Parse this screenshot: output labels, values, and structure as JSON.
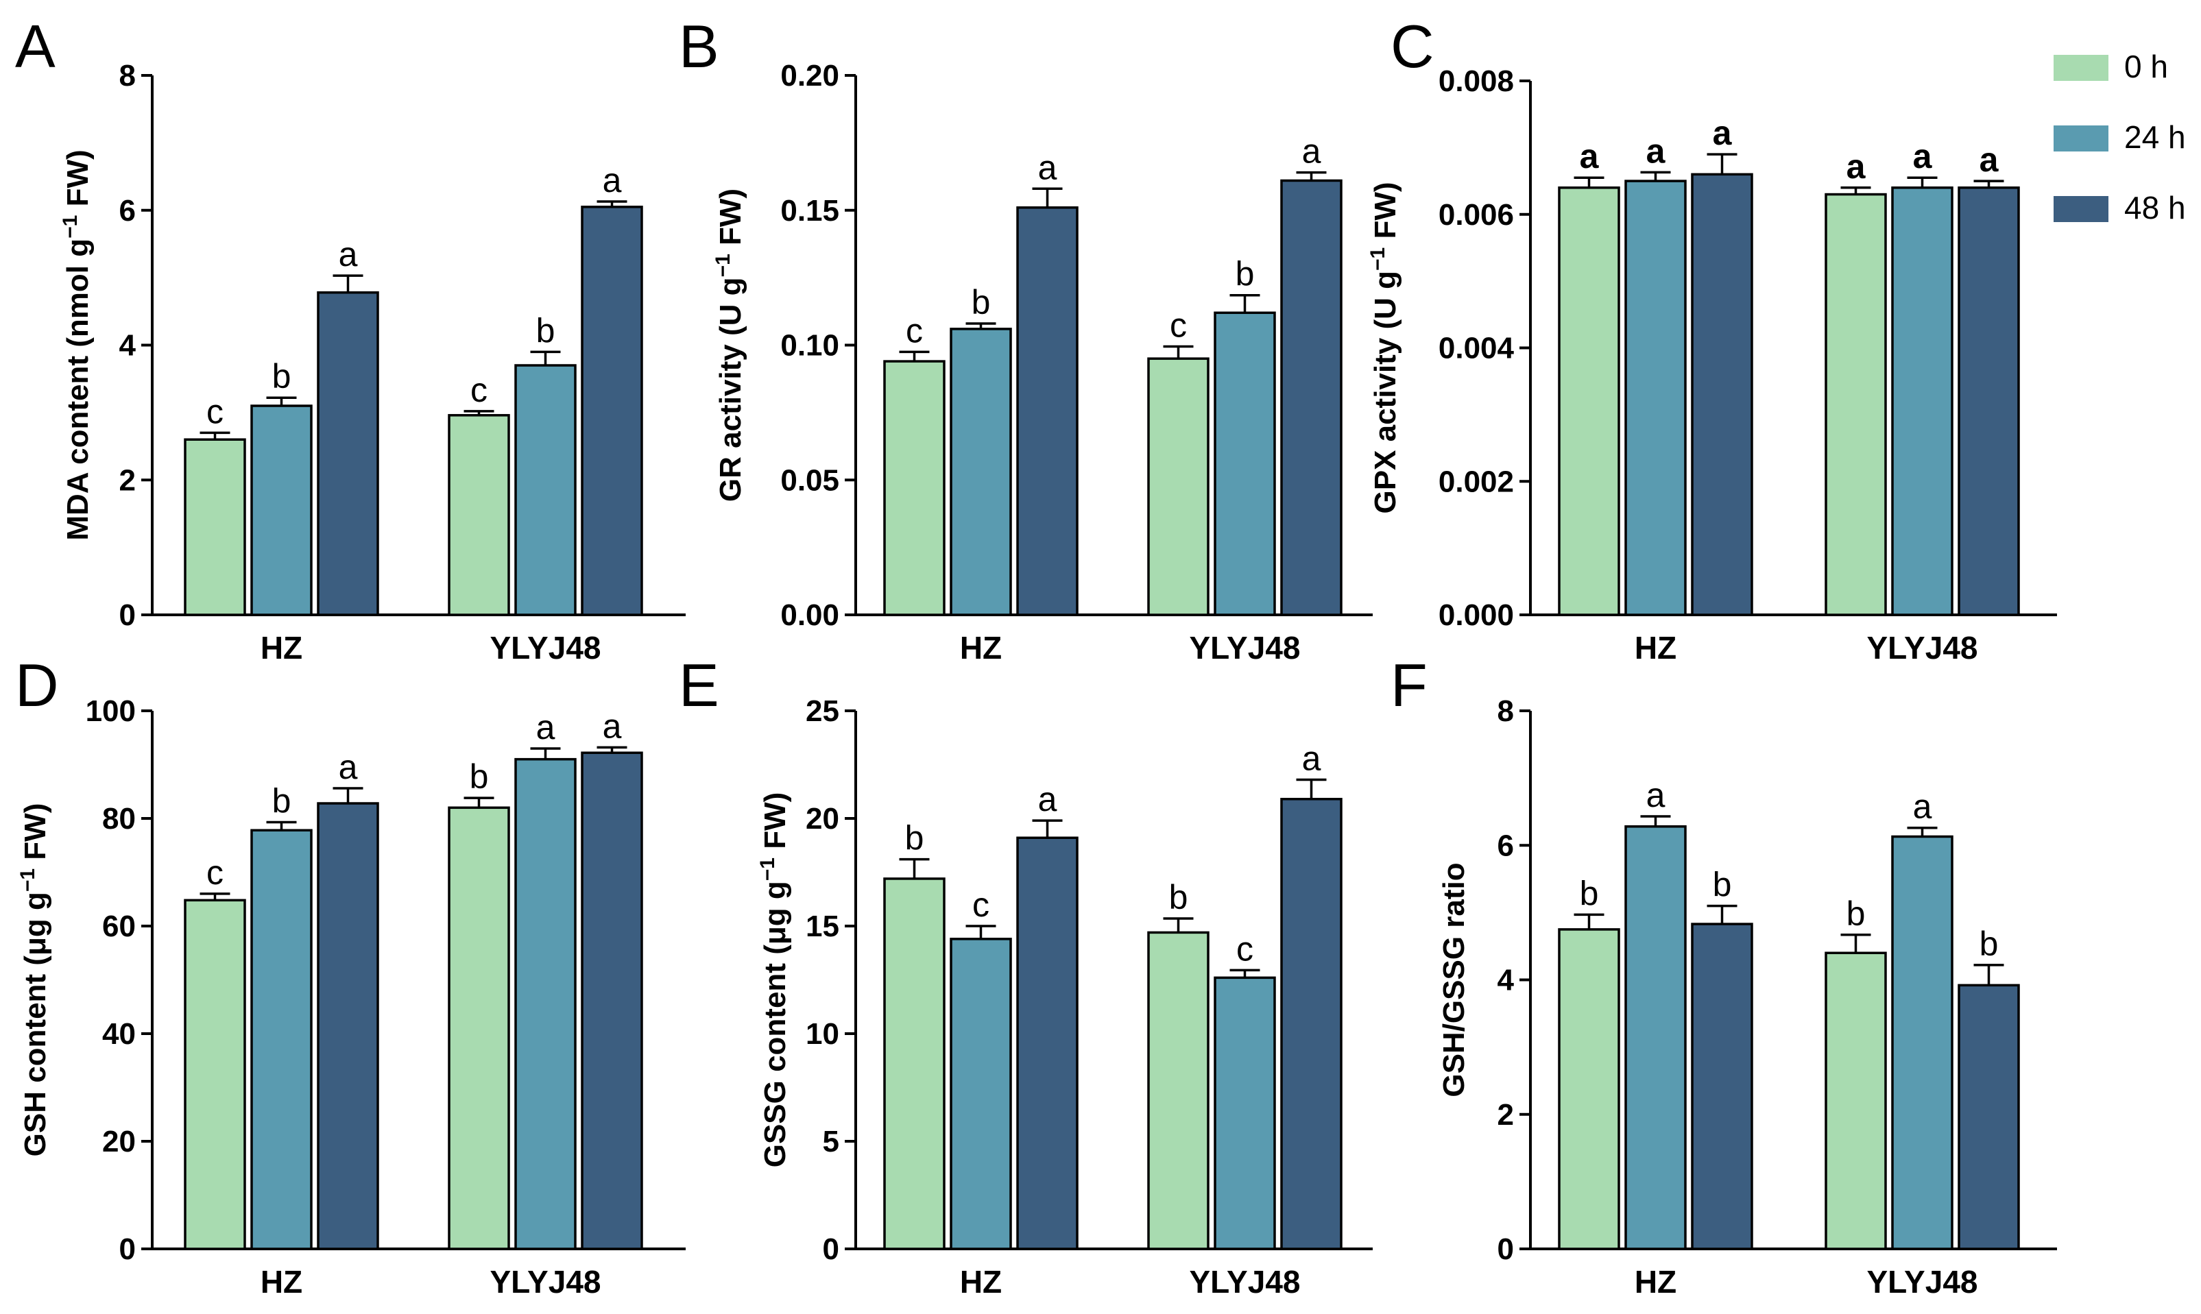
{
  "colors": {
    "0h": "#a8dbb0",
    "24h": "#5a9bb0",
    "48h": "#3c5e80",
    "stroke": "#000000"
  },
  "legend": [
    {
      "label": "0 h",
      "color_key": "0h"
    },
    {
      "label": "24 h",
      "color_key": "24h"
    },
    {
      "label": "48 h",
      "color_key": "48h"
    }
  ],
  "chart_data": [
    {
      "type": "bar",
      "panel": "A",
      "ylabel": "MDA content (nmol g<sup>−1</sup> FW)",
      "ylim": [
        0,
        8
      ],
      "yticks": [
        "0",
        "2",
        "4",
        "6",
        "8"
      ],
      "categories": [
        "HZ",
        "YLYJ48"
      ],
      "series": [
        {
          "name": "0 h",
          "values": [
            2.6,
            2.96
          ],
          "errors": [
            0.1,
            0.06
          ],
          "letters": [
            "c",
            "c"
          ]
        },
        {
          "name": "24 h",
          "values": [
            3.1,
            3.7
          ],
          "errors": [
            0.12,
            0.2
          ],
          "letters": [
            "b",
            "b"
          ]
        },
        {
          "name": "48 h",
          "values": [
            4.78,
            6.05
          ],
          "errors": [
            0.25,
            0.08
          ],
          "letters": [
            "a",
            "a"
          ]
        }
      ],
      "letters_bold": false
    },
    {
      "type": "bar",
      "panel": "B",
      "ylabel": "GR activity (U g<sup>−1</sup> FW)",
      "ylim": [
        0,
        0.2
      ],
      "yticks": [
        "0.00",
        "0.05",
        "0.10",
        "0.15",
        "0.20"
      ],
      "categories": [
        "HZ",
        "YLYJ48"
      ],
      "series": [
        {
          "name": "0 h",
          "values": [
            0.094,
            0.095
          ],
          "errors": [
            0.0035,
            0.0045
          ],
          "letters": [
            "c",
            "c"
          ]
        },
        {
          "name": "24 h",
          "values": [
            0.106,
            0.112
          ],
          "errors": [
            0.002,
            0.0065
          ],
          "letters": [
            "b",
            "b"
          ]
        },
        {
          "name": "48 h",
          "values": [
            0.151,
            0.161
          ],
          "errors": [
            0.007,
            0.003
          ],
          "letters": [
            "a",
            "a"
          ]
        }
      ],
      "letters_bold": false
    },
    {
      "type": "bar",
      "panel": "C",
      "ylabel": "GPX activity (U g<sup>−1</sup> FW)",
      "ylim": [
        0,
        0.008
      ],
      "yticks": [
        "0.000",
        "0.002",
        "0.004",
        "0.006",
        "0.008"
      ],
      "categories": [
        "HZ",
        "YLYJ48"
      ],
      "series": [
        {
          "name": "0 h",
          "values": [
            0.0064,
            0.0063
          ],
          "errors": [
            0.00015,
            0.0001
          ],
          "letters": [
            "a",
            "a"
          ]
        },
        {
          "name": "24 h",
          "values": [
            0.0065,
            0.0064
          ],
          "errors": [
            0.00013,
            0.00015
          ],
          "letters": [
            "a",
            "a"
          ]
        },
        {
          "name": "48 h",
          "values": [
            0.0066,
            0.0064
          ],
          "errors": [
            0.0003,
            0.0001
          ],
          "letters": [
            "a",
            "a"
          ]
        }
      ],
      "letters_bold": true
    },
    {
      "type": "bar",
      "panel": "D",
      "ylabel": "GSH content (μg g<sup>−1</sup> FW)",
      "ylim": [
        0,
        100
      ],
      "yticks": [
        "0",
        "20",
        "40",
        "60",
        "80",
        "100"
      ],
      "categories": [
        "HZ",
        "YLYJ48"
      ],
      "series": [
        {
          "name": "0 h",
          "values": [
            64.8,
            82
          ],
          "errors": [
            1.2,
            1.8
          ],
          "letters": [
            "c",
            "b"
          ]
        },
        {
          "name": "24 h",
          "values": [
            77.8,
            91
          ],
          "errors": [
            1.5,
            2.0
          ],
          "letters": [
            "b",
            "a"
          ]
        },
        {
          "name": "48 h",
          "values": [
            82.8,
            92.2
          ],
          "errors": [
            2.8,
            1.0
          ],
          "letters": [
            "a",
            "a"
          ]
        }
      ],
      "letters_bold": false
    },
    {
      "type": "bar",
      "panel": "E",
      "ylabel": "GSSG content (μg g<sup>−1</sup> FW)",
      "ylim": [
        0,
        25
      ],
      "yticks": [
        "0",
        "5",
        "10",
        "15",
        "20",
        "25"
      ],
      "categories": [
        "HZ",
        "YLYJ48"
      ],
      "series": [
        {
          "name": "0 h",
          "values": [
            17.2,
            14.7
          ],
          "errors": [
            0.9,
            0.65
          ],
          "letters": [
            "b",
            "b"
          ]
        },
        {
          "name": "24 h",
          "values": [
            14.4,
            12.6
          ],
          "errors": [
            0.6,
            0.35
          ],
          "letters": [
            "c",
            "c"
          ]
        },
        {
          "name": "48 h",
          "values": [
            19.1,
            20.9
          ],
          "errors": [
            0.8,
            0.9
          ],
          "letters": [
            "a",
            "a"
          ]
        }
      ],
      "letters_bold": false
    },
    {
      "type": "bar",
      "panel": "F",
      "ylabel": "GSH/GSSG ratio",
      "ylim": [
        0,
        8
      ],
      "yticks": [
        "0",
        "2",
        "4",
        "6",
        "8"
      ],
      "categories": [
        "HZ",
        "YLYJ48"
      ],
      "series": [
        {
          "name": "0 h",
          "values": [
            4.75,
            4.4
          ],
          "errors": [
            0.22,
            0.27
          ],
          "letters": [
            "b",
            "b"
          ]
        },
        {
          "name": "24 h",
          "values": [
            6.28,
            6.13
          ],
          "errors": [
            0.15,
            0.13
          ],
          "letters": [
            "a",
            "a"
          ]
        },
        {
          "name": "48 h",
          "values": [
            4.83,
            3.92
          ],
          "errors": [
            0.27,
            0.3
          ],
          "letters": [
            "b",
            "b"
          ]
        }
      ],
      "letters_bold": false
    }
  ]
}
